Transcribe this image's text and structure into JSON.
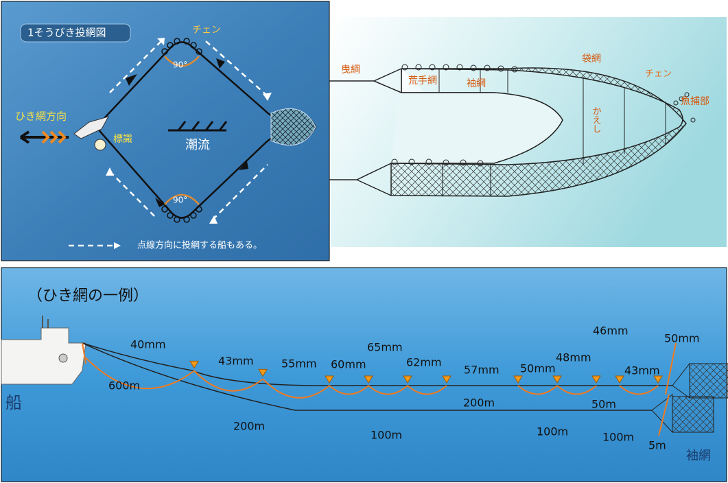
{
  "casting_diagram": {
    "title": "1そうびき投網図",
    "chain": "チェン",
    "angle_top": "90°",
    "angle_bottom": "90°",
    "tow_direction": "ひき網方向",
    "marker": "標識",
    "current": "潮流",
    "note": "点線方向に投網する船もある。"
  },
  "net_structure": {
    "tow_rope": "曳綱",
    "bag_net": "袋網",
    "chain": "チェン",
    "rough_net": "荒手網",
    "wing_net": "袖網",
    "cod_end": "魚捕部",
    "return_flap": "かえし"
  },
  "seine_example": {
    "title": "（ひき網の一例）",
    "boat": "船",
    "wing_net": "袖網",
    "mesh_sizes": [
      "40mm",
      "43mm",
      "55mm",
      "60mm",
      "65mm",
      "62mm",
      "57mm",
      "50mm",
      "48mm",
      "46mm",
      "43mm",
      "50mm"
    ],
    "lengths": [
      "600m",
      "200m",
      "100m",
      "200m",
      "100m",
      "50m",
      "100m",
      "5m"
    ]
  }
}
